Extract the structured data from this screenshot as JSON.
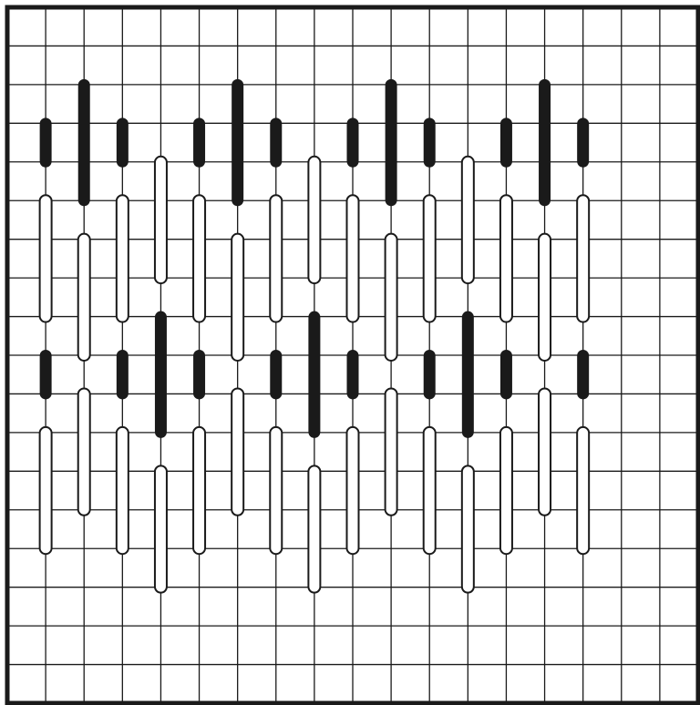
{
  "diagram": {
    "kind": "bargello stitch chart",
    "colors": {
      "background": "#ffffff",
      "grid": "#1a1a1a",
      "stitch_filled": "#1a1a1a",
      "stitch_open_fill": "#ffffff",
      "stitch_outline": "#1a1a1a"
    },
    "grid": {
      "columns": 18,
      "rows": 18
    },
    "stitches": [
      {
        "col": 1,
        "from": 3,
        "to": 4,
        "filled": true
      },
      {
        "col": 1,
        "from": 5,
        "to": 8,
        "filled": false
      },
      {
        "col": 1,
        "from": 9,
        "to": 10,
        "filled": true
      },
      {
        "col": 1,
        "from": 11,
        "to": 14,
        "filled": false
      },
      {
        "col": 2,
        "from": 2,
        "to": 5,
        "filled": true
      },
      {
        "col": 2,
        "from": 6,
        "to": 9,
        "filled": false
      },
      {
        "col": 2,
        "from": 10,
        "to": 13,
        "filled": false
      },
      {
        "col": 3,
        "from": 3,
        "to": 4,
        "filled": true
      },
      {
        "col": 3,
        "from": 5,
        "to": 8,
        "filled": false
      },
      {
        "col": 3,
        "from": 9,
        "to": 10,
        "filled": true
      },
      {
        "col": 3,
        "from": 11,
        "to": 14,
        "filled": false
      },
      {
        "col": 4,
        "from": 4,
        "to": 7,
        "filled": false
      },
      {
        "col": 4,
        "from": 8,
        "to": 11,
        "filled": true
      },
      {
        "col": 4,
        "from": 12,
        "to": 15,
        "filled": false
      },
      {
        "col": 5,
        "from": 3,
        "to": 4,
        "filled": true
      },
      {
        "col": 5,
        "from": 5,
        "to": 8,
        "filled": false
      },
      {
        "col": 5,
        "from": 9,
        "to": 10,
        "filled": true
      },
      {
        "col": 5,
        "from": 11,
        "to": 14,
        "filled": false
      },
      {
        "col": 6,
        "from": 2,
        "to": 5,
        "filled": true
      },
      {
        "col": 6,
        "from": 6,
        "to": 9,
        "filled": false
      },
      {
        "col": 6,
        "from": 10,
        "to": 13,
        "filled": false
      },
      {
        "col": 7,
        "from": 3,
        "to": 4,
        "filled": true
      },
      {
        "col": 7,
        "from": 5,
        "to": 8,
        "filled": false
      },
      {
        "col": 7,
        "from": 9,
        "to": 10,
        "filled": true
      },
      {
        "col": 7,
        "from": 11,
        "to": 14,
        "filled": false
      },
      {
        "col": 8,
        "from": 4,
        "to": 7,
        "filled": false
      },
      {
        "col": 8,
        "from": 8,
        "to": 11,
        "filled": true
      },
      {
        "col": 8,
        "from": 12,
        "to": 15,
        "filled": false
      },
      {
        "col": 9,
        "from": 3,
        "to": 4,
        "filled": true
      },
      {
        "col": 9,
        "from": 5,
        "to": 8,
        "filled": false
      },
      {
        "col": 9,
        "from": 9,
        "to": 10,
        "filled": true
      },
      {
        "col": 9,
        "from": 11,
        "to": 14,
        "filled": false
      },
      {
        "col": 10,
        "from": 2,
        "to": 5,
        "filled": true
      },
      {
        "col": 10,
        "from": 6,
        "to": 9,
        "filled": false
      },
      {
        "col": 10,
        "from": 10,
        "to": 13,
        "filled": false
      },
      {
        "col": 11,
        "from": 3,
        "to": 4,
        "filled": true
      },
      {
        "col": 11,
        "from": 5,
        "to": 8,
        "filled": false
      },
      {
        "col": 11,
        "from": 9,
        "to": 10,
        "filled": true
      },
      {
        "col": 11,
        "from": 11,
        "to": 14,
        "filled": false
      },
      {
        "col": 12,
        "from": 4,
        "to": 7,
        "filled": false
      },
      {
        "col": 12,
        "from": 8,
        "to": 11,
        "filled": true
      },
      {
        "col": 12,
        "from": 12,
        "to": 15,
        "filled": false
      },
      {
        "col": 13,
        "from": 3,
        "to": 4,
        "filled": true
      },
      {
        "col": 13,
        "from": 5,
        "to": 8,
        "filled": false
      },
      {
        "col": 13,
        "from": 9,
        "to": 10,
        "filled": true
      },
      {
        "col": 13,
        "from": 11,
        "to": 14,
        "filled": false
      },
      {
        "col": 14,
        "from": 2,
        "to": 5,
        "filled": true
      },
      {
        "col": 14,
        "from": 6,
        "to": 9,
        "filled": false
      },
      {
        "col": 14,
        "from": 10,
        "to": 13,
        "filled": false
      },
      {
        "col": 15,
        "from": 3,
        "to": 4,
        "filled": true
      },
      {
        "col": 15,
        "from": 5,
        "to": 8,
        "filled": false
      },
      {
        "col": 15,
        "from": 9,
        "to": 10,
        "filled": true
      },
      {
        "col": 15,
        "from": 11,
        "to": 14,
        "filled": false
      }
    ]
  }
}
